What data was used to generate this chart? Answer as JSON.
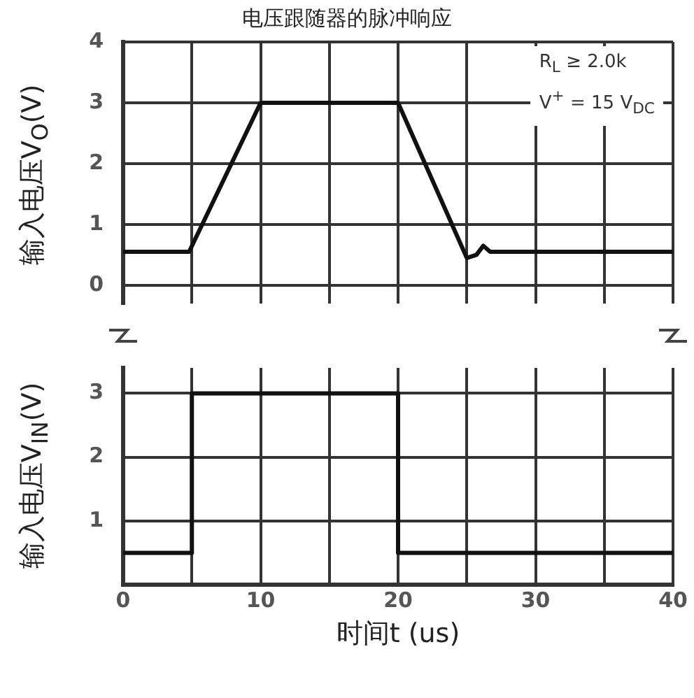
{
  "chart_data": [
    {
      "type": "line",
      "title": "电压跟随器的脉冲响应",
      "ylabel": "输入电压V$_{O}$(V)",
      "xlim": [
        0,
        40
      ],
      "xticks": [
        0,
        {
          "value": 5,
          "label": null
        },
        10,
        {
          "value": 15,
          "label": null
        },
        20,
        {
          "value": 25,
          "label": null
        },
        30,
        {
          "value": 35,
          "label": null
        },
        40
      ],
      "ylim": [
        -0.3,
        4
      ],
      "yticks": [
        0,
        1,
        2,
        3,
        4
      ],
      "grid": true,
      "legend": false,
      "tick_labels": "y",
      "annotations": [
        "R$_{L}$ ≥ 2.0k",
        "V$^{+}$ = 15 V$_{DC}$"
      ],
      "series": [
        {
          "color": "#111111",
          "x": [
            0,
            4.8,
            10,
            20,
            25,
            25.7,
            26.2,
            26.7,
            40
          ],
          "values": [
            0.55,
            0.55,
            3,
            3,
            0.45,
            0.5,
            0.65,
            0.55,
            0.55
          ]
        }
      ]
    },
    {
      "type": "line",
      "ylabel": "输入电压V$_{IN}$(V)",
      "xlabel": "时间t (us)",
      "xlim": [
        0,
        40
      ],
      "xticks": [
        0,
        {
          "value": 5,
          "label": null
        },
        10,
        {
          "value": 15,
          "label": null
        },
        20,
        {
          "value": 25,
          "label": null
        },
        30,
        {
          "value": 35,
          "label": null
        },
        40
      ],
      "ylim": [
        0,
        3.4
      ],
      "yticks": [
        1,
        2,
        3
      ],
      "grid": true,
      "legend": false,
      "series": [
        {
          "color": "#111111",
          "x": [
            0,
            5,
            5,
            20,
            20,
            40
          ],
          "values": [
            0.5,
            0.5,
            3,
            3,
            0.5,
            0.5
          ]
        }
      ]
    }
  ]
}
